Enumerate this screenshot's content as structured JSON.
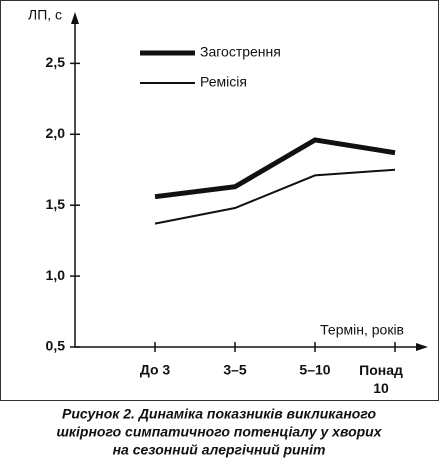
{
  "chart_data": {
    "type": "line",
    "y_label": "ЛП, с",
    "x_label": "Термін, років",
    "categories": [
      "До 3",
      "3–5",
      "5–10",
      "Понад\n10"
    ],
    "series": [
      {
        "name": "Загострення",
        "color": "#111111",
        "width": 5,
        "values": [
          1.56,
          1.63,
          1.96,
          1.87
        ]
      },
      {
        "name": "Ремісія",
        "color": "#111111",
        "width": 2,
        "values": [
          1.37,
          1.48,
          1.71,
          1.75
        ]
      }
    ],
    "ylim": [
      0.5,
      2.82
    ],
    "yticks": [
      {
        "value": 0.5,
        "label": "0,5"
      },
      {
        "value": 1.0,
        "label": "1,0"
      },
      {
        "value": 1.5,
        "label": "1,5"
      },
      {
        "value": 2.0,
        "label": "2,0"
      },
      {
        "value": 2.5,
        "label": "2,5"
      }
    ],
    "caption": [
      "Рисунок 2. Динаміка показників викликаного",
      "шкірного симпатичного потенціалу у хворих",
      "на сезонний алергічний риніт"
    ]
  }
}
